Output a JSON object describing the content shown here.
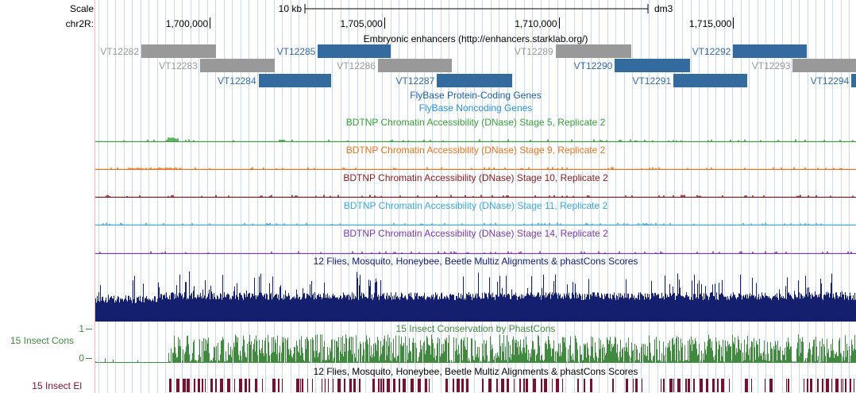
{
  "ruler": {
    "scale_label": "Scale",
    "chrom_label": "chr2R:",
    "scalebar_label": "10 kb",
    "assembly": "dm3",
    "ticks": [
      {
        "label": "1,700,000",
        "pos": 1700000
      },
      {
        "label": "1,705,000",
        "pos": 1705000
      },
      {
        "label": "1,710,000",
        "pos": 1710000
      },
      {
        "label": "1,715,000",
        "pos": 1715000
      }
    ]
  },
  "view": {
    "start": 1696720,
    "end": 1718520
  },
  "colors": {
    "grid": "#c8d8f0",
    "gutter_line": "#f2b8b8",
    "enh_gray": "#999999",
    "enh_blue": "#336b9e",
    "flybase_coding": "#1f5fa8",
    "flybase_noncoding": "#2b8fd6",
    "stage5": "#3aa03a",
    "stage9": "#e8741e",
    "stage10": "#8b1a1a",
    "stage11": "#3ea9d8",
    "stage14": "#7a3aa8",
    "multiz": "#14206e",
    "cons": "#3f8a3f",
    "elements": "#7a1030"
  },
  "enhancers": {
    "title": "Embryonic enhancers (http://enhancers.starklab.org/)",
    "items": [
      {
        "name": "VT12282",
        "start": 1698040,
        "end": 1700180,
        "row": 0,
        "color": "gray"
      },
      {
        "name": "VT12283",
        "start": 1699720,
        "end": 1701860,
        "row": 1,
        "color": "gray"
      },
      {
        "name": "VT12284",
        "start": 1701400,
        "end": 1703470,
        "row": 2,
        "color": "blue"
      },
      {
        "name": "VT12285",
        "start": 1703100,
        "end": 1705190,
        "row": 0,
        "color": "blue"
      },
      {
        "name": "VT12286",
        "start": 1704820,
        "end": 1706930,
        "row": 1,
        "color": "gray"
      },
      {
        "name": "VT12287",
        "start": 1706510,
        "end": 1708670,
        "row": 2,
        "color": "blue"
      },
      {
        "name": "VT12289",
        "start": 1709910,
        "end": 1712080,
        "row": 0,
        "color": "gray"
      },
      {
        "name": "VT12290",
        "start": 1711610,
        "end": 1713760,
        "row": 1,
        "color": "blue"
      },
      {
        "name": "VT12291",
        "start": 1713290,
        "end": 1715410,
        "row": 2,
        "color": "blue"
      },
      {
        "name": "VT12292",
        "start": 1715000,
        "end": 1717100,
        "row": 0,
        "color": "blue"
      },
      {
        "name": "VT12293",
        "start": 1716710,
        "end": 1718520,
        "row": 1,
        "color": "gray"
      },
      {
        "name": "VT12294",
        "start": 1718390,
        "end": 1718520,
        "row": 2,
        "color": "blue"
      }
    ]
  },
  "tracks": {
    "flybase_coding": "FlyBase Protein-Coding Genes",
    "flybase_noncoding": "FlyBase Noncoding Genes",
    "dnase_stage5": "BDTNP Chromatin Accessibility (DNase) Stage 5, Replicate 2",
    "dnase_stage9": "BDTNP Chromatin Accessibility (DNase) Stage 9, Replicate 2",
    "dnase_stage10": "BDTNP Chromatin Accessibility (DNase) Stage 10, Replicate 2",
    "dnase_stage11": "BDTNP Chromatin Accessibility (DNase) Stage 11, Replicate 2",
    "dnase_stage14": "BDTNP Chromatin Accessibility (DNase) Stage 14, Replicate 2",
    "multiz_title": "12 Flies, Mosquito, Honeybee, Beetle Multiz Alignments & phastCons Scores",
    "cons_title": "15 Insect Conservation by PhastCons",
    "cons_side_label": "15 Insect Cons",
    "cons_axis_top": "1",
    "cons_axis_bottom": "0",
    "elements_title": "12 Flies, Mosquito, Honeybee, Beetle Multiz Alignments & phastCons Scores",
    "elements_side_label": "15 Insect El"
  }
}
